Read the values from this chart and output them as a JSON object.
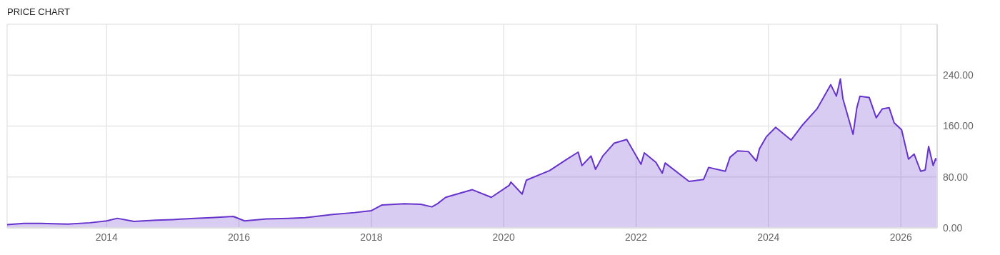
{
  "chart_data": {
    "type": "area",
    "title": "PRICE CHART",
    "x": [
      "2012-07",
      "2012-10",
      "2013-01",
      "2013-06",
      "2013-10",
      "2014-01",
      "2014-03",
      "2014-06",
      "2014-10",
      "2015-01",
      "2015-05",
      "2015-08",
      "2015-12",
      "2016-02",
      "2016-06",
      "2016-10",
      "2017-01",
      "2017-06",
      "2017-10",
      "2018-01",
      "2018-03",
      "2018-07",
      "2018-10",
      "2018-12",
      "2019-01",
      "2019-02-15",
      "2019-07-12",
      "2019-10-25",
      "2020-02-01",
      "2020-02-10",
      "2020-04-12",
      "2020-05-05",
      "2020-09-10",
      "2020-12-15",
      "2021-02-15",
      "2021-03-08",
      "2021-04-27",
      "2021-05-22",
      "2021-07-01",
      "2021-09-01",
      "2021-11-10",
      "2022-01-28",
      "2022-02-15",
      "2022-04-20",
      "2022-05-25",
      "2022-06-10",
      "2022-10-20",
      "2023-01-08",
      "2023-02-05",
      "2023-05-08",
      "2023-06-03",
      "2023-07-15",
      "2023-09-12",
      "2023-10-27",
      "2023-11-12",
      "2023-12-20",
      "2024-02-10",
      "2024-05-05",
      "2024-07-08",
      "2024-09-25",
      "2024-12-10",
      "2025-01-10",
      "2025-02-01",
      "2025-02-15",
      "2025-04-12",
      "2025-05-03",
      "2025-05-20",
      "2025-07-10",
      "2025-08-18",
      "2025-09-20",
      "2025-10-28",
      "2025-11-25",
      "2026-01-05",
      "2026-02-12",
      "2026-03-15",
      "2026-04-20",
      "2026-05-15",
      "2026-06-03",
      "2026-06-28",
      "2026-07-12",
      "2026-07-19"
    ],
    "series": [
      {
        "color": "#6633cc",
        "values": [
          5,
          7,
          7,
          6,
          8,
          11,
          15,
          10,
          12,
          13,
          15,
          16,
          18,
          11,
          14,
          15,
          16,
          21,
          24,
          27,
          36,
          38,
          37,
          33,
          38,
          48,
          60,
          48,
          67,
          72,
          53,
          75,
          90,
          108,
          119,
          98,
          113,
          92,
          113,
          133,
          139,
          100,
          118,
          103,
          86,
          102,
          73,
          76,
          95,
          89,
          111,
          121,
          120,
          105,
          124,
          143,
          158,
          138,
          162,
          187,
          225,
          207,
          234,
          203,
          147,
          189,
          207,
          205,
          173,
          187,
          189,
          165,
          154,
          108,
          116,
          89,
          91,
          128,
          98,
          109,
          105
        ]
      }
    ],
    "xlim": [
      "2012-07",
      "2026-07-20"
    ],
    "xticks": [
      {
        "value": "2014",
        "label": "2014"
      },
      {
        "value": "2016",
        "label": "2016"
      },
      {
        "value": "2018",
        "label": "2018"
      },
      {
        "value": "2020",
        "label": "2020"
      },
      {
        "value": "2022",
        "label": "2022"
      },
      {
        "value": "2024",
        "label": "2024"
      },
      {
        "value": "2026",
        "label": "2026"
      }
    ],
    "ylim": [
      0,
      320
    ],
    "yticks": [
      {
        "value": 0,
        "label": "0.00"
      },
      {
        "value": 80,
        "label": "80.00"
      },
      {
        "value": 160,
        "label": "160.00"
      },
      {
        "value": 240,
        "label": "240.00"
      },
      {
        "value": 320,
        "label": null
      }
    ],
    "grid": true,
    "legend": false
  }
}
